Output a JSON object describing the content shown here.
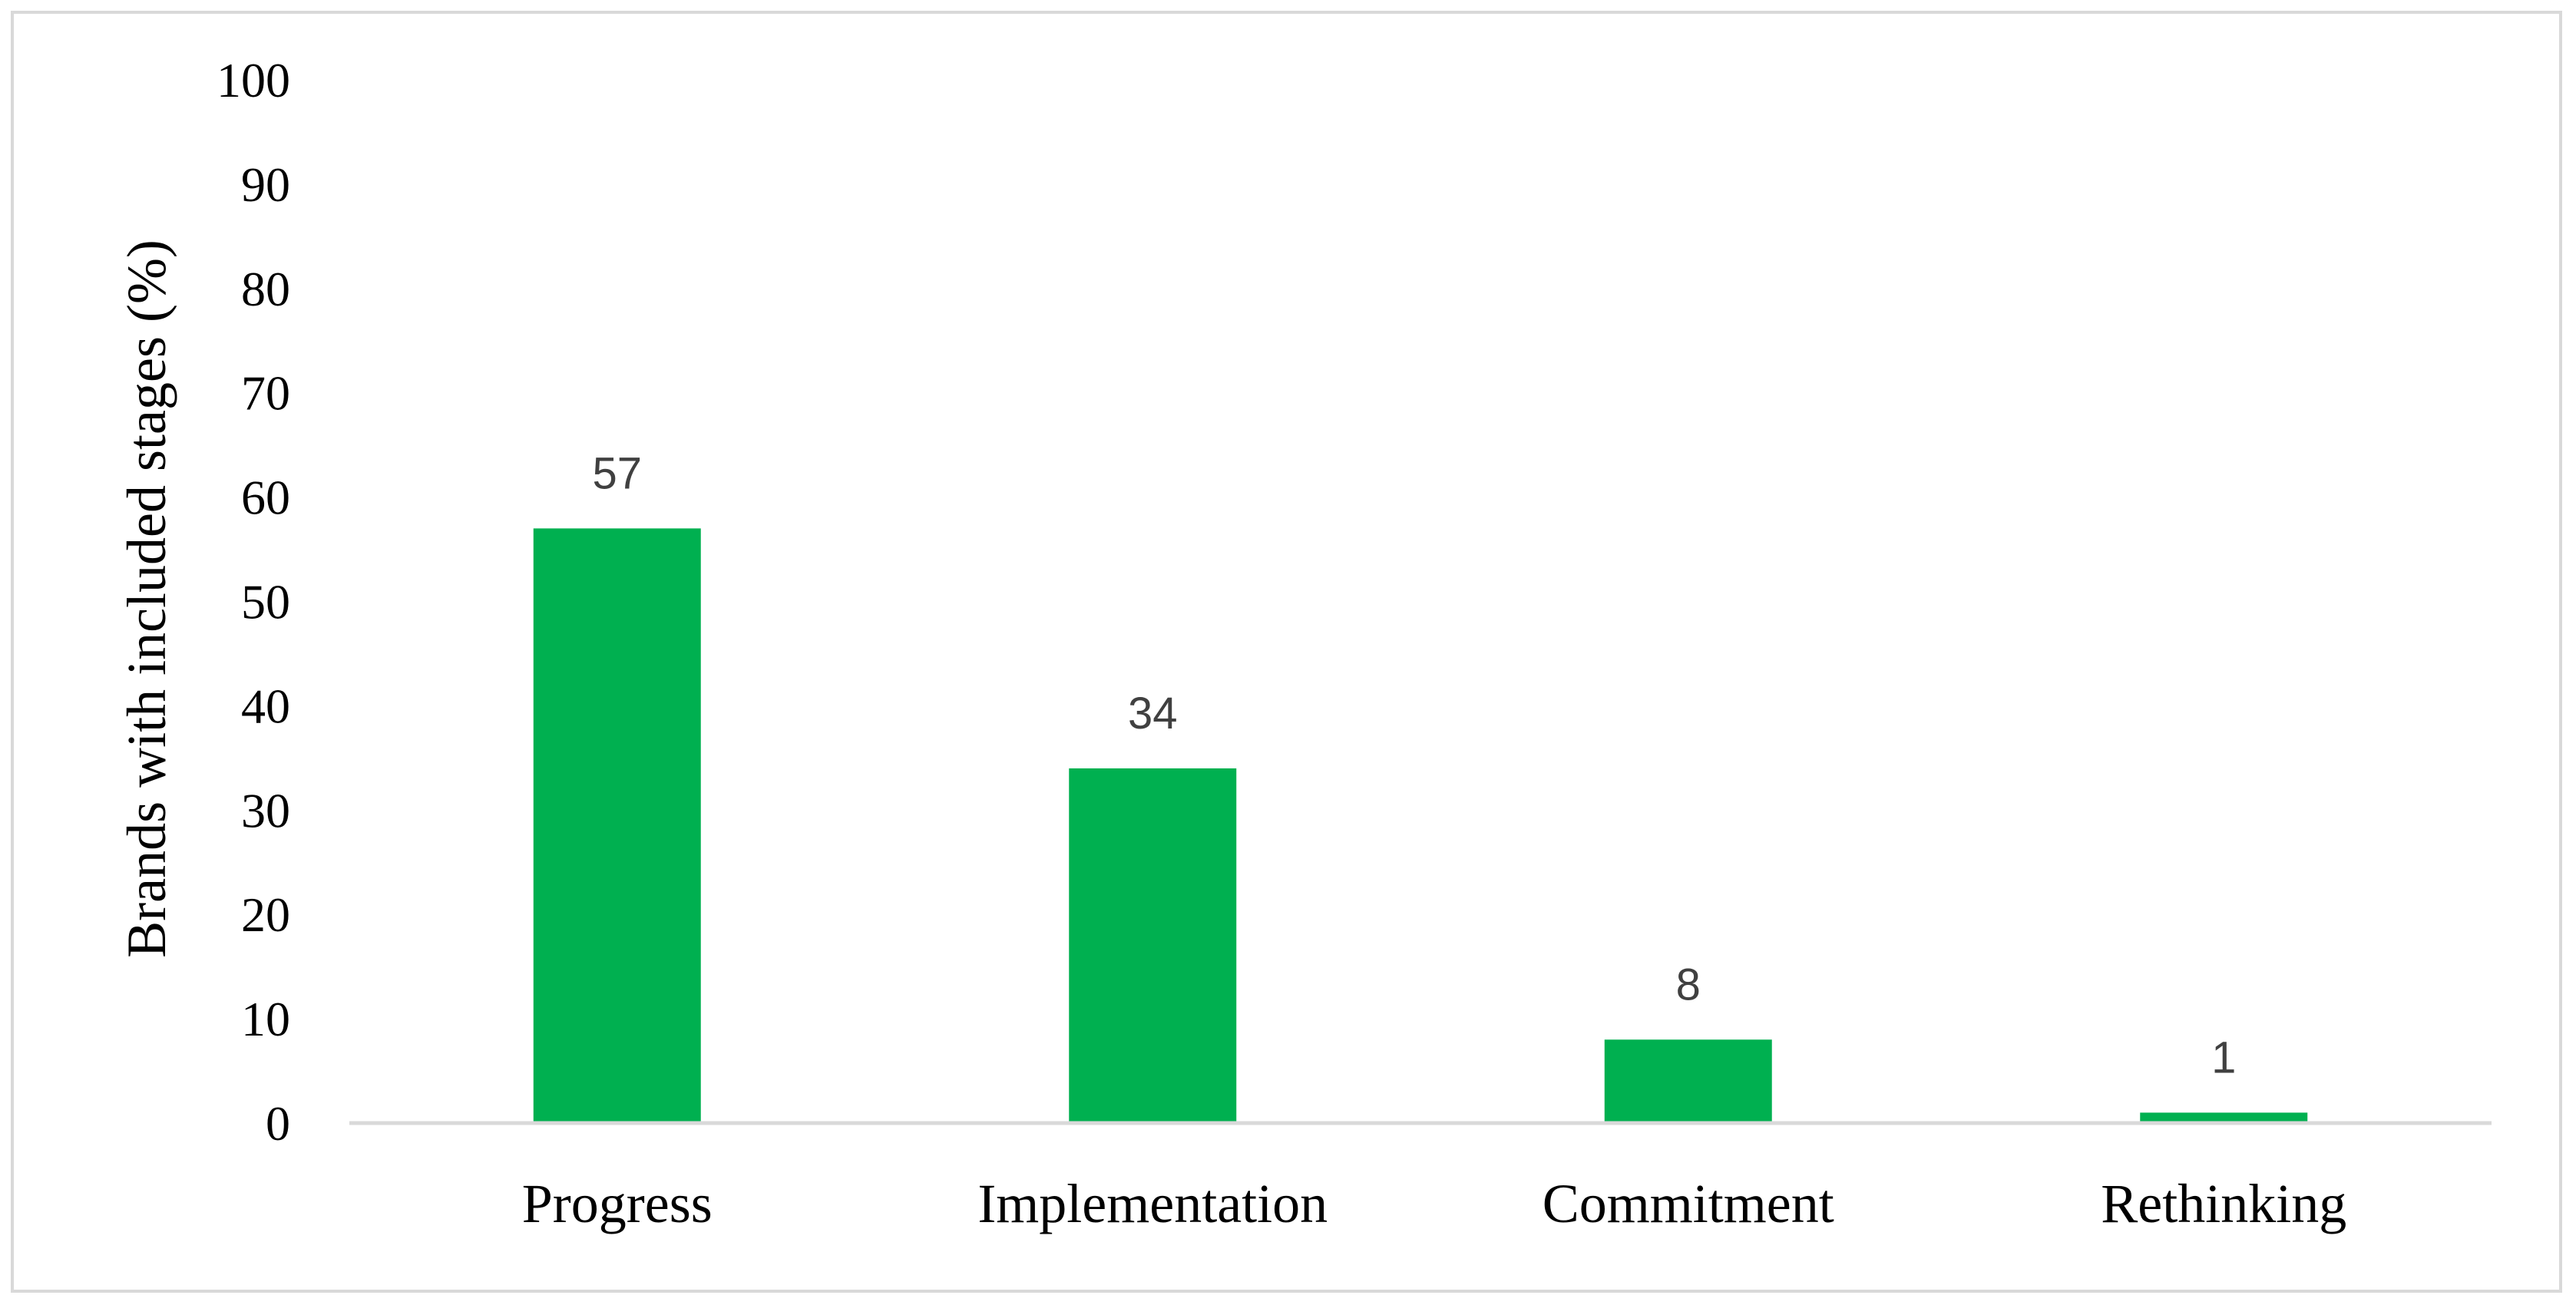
{
  "chart_data": {
    "type": "bar",
    "categories": [
      "Progress",
      "Implementation",
      "Commitment",
      "Rethinking"
    ],
    "values": [
      57,
      34,
      8,
      1
    ],
    "data_labels": [
      "57",
      "34",
      "8",
      "1"
    ],
    "title": "",
    "xlabel": "",
    "ylabel": "Brands with included stages (%)",
    "ylim": [
      0,
      100
    ],
    "yticks": [
      0,
      10,
      20,
      30,
      40,
      50,
      60,
      70,
      80,
      90,
      100
    ],
    "ytick_labels": [
      "0",
      "10",
      "20",
      "30",
      "40",
      "50",
      "60",
      "70",
      "80",
      "90",
      "100"
    ],
    "grid": false,
    "legend": "none",
    "bar_color": "#00b050",
    "axis_color": "#d9d9d9"
  }
}
